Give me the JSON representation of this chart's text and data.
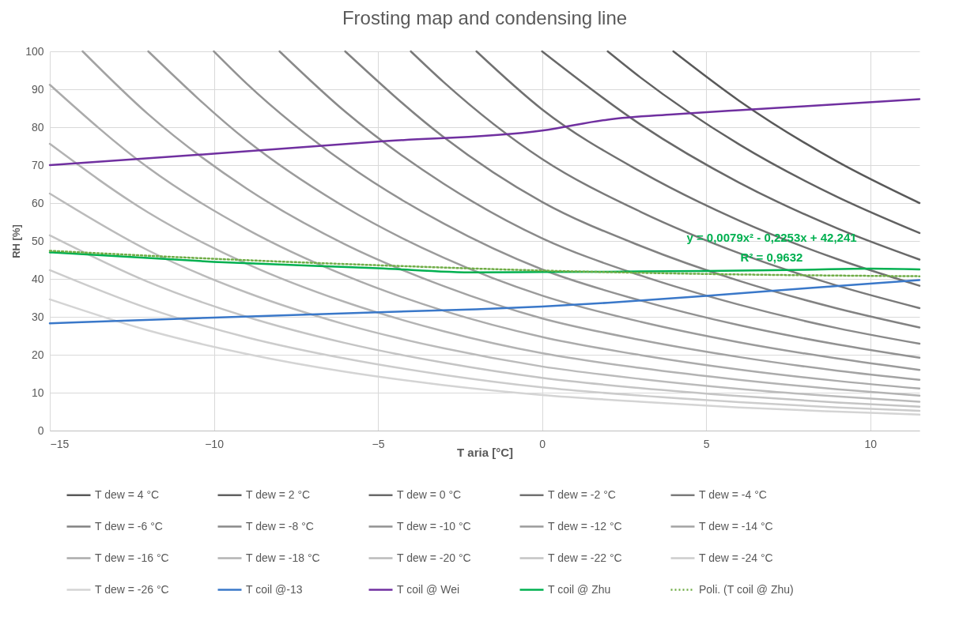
{
  "chart_data": {
    "type": "line",
    "title": "Frosting map and condensing line",
    "xlabel": "T aria [°C]",
    "ylabel": "RH [%]",
    "xlim": [
      -15,
      11.5
    ],
    "xticks": [
      -15,
      -10,
      -5,
      0,
      5,
      10
    ],
    "ylim": [
      0,
      100
    ],
    "yticks": [
      0,
      10,
      20,
      30,
      40,
      50,
      60,
      70,
      80,
      90,
      100
    ],
    "grid": true,
    "legend": "bottom",
    "annotations": [
      "y = 0,0079x² - 0,2253x + 42,241",
      "R² = 0,9632"
    ],
    "series": [
      {
        "name": "T dew = 4 °C",
        "color": "#595959",
        "x": [
          4,
          6,
          9,
          11.5
        ],
        "values": [
          100,
          87.0,
          70.9,
          60.0
        ]
      },
      {
        "name": "T dew = 2 °C",
        "color": "#616161",
        "x": [
          2,
          3,
          6,
          9,
          11.5
        ],
        "values": [
          100,
          93.1,
          75.5,
          61.6,
          52.1
        ]
      },
      {
        "name": "T dew = 0 °C",
        "color": "#696969",
        "x": [
          0,
          3,
          6,
          9,
          11.5
        ],
        "values": [
          100,
          80.7,
          65.4,
          53.3,
          45.1
        ]
      },
      {
        "name": "T dew = -2 °C",
        "color": "#717171",
        "x": [
          -2,
          0,
          3,
          6,
          9,
          11.5
        ],
        "values": [
          100,
          84.7,
          68.3,
          55.4,
          45.2,
          38.2
        ]
      },
      {
        "name": "T dew = -4 °C",
        "color": "#7a7a7a",
        "x": [
          -4,
          -3,
          0,
          3,
          6,
          9,
          11.5
        ],
        "values": [
          100,
          91.9,
          71.6,
          57.7,
          46.8,
          38.2,
          32.3
        ]
      },
      {
        "name": "T dew = -6 °C",
        "color": "#828282",
        "x": [
          -6,
          -3,
          0,
          3,
          6,
          9,
          11.5
        ],
        "values": [
          100,
          77.4,
          60.3,
          48.7,
          39.5,
          32.2,
          27.2
        ]
      },
      {
        "name": "T dew = -8 °C",
        "color": "#8a8a8a",
        "x": [
          -8,
          -6,
          -3,
          0,
          3,
          6,
          9,
          11.5
        ],
        "values": [
          100,
          84.1,
          65.1,
          50.7,
          40.9,
          33.2,
          27.0,
          22.9
        ]
      },
      {
        "name": "T dew = -10 °C",
        "color": "#929292",
        "x": [
          -10,
          -9,
          -6,
          -3,
          0,
          3,
          6,
          9,
          11.5
        ],
        "values": [
          100,
          91.5,
          70.5,
          54.6,
          42.5,
          34.3,
          27.8,
          22.7,
          19.2
        ]
      },
      {
        "name": "T dew = -12 °C",
        "color": "#9b9b9b",
        "x": [
          -12,
          -9,
          -6,
          -3,
          0,
          3,
          6,
          9,
          11.5
        ],
        "values": [
          100,
          76.5,
          58.9,
          45.6,
          35.6,
          28.7,
          23.3,
          19.0,
          16.0
        ]
      },
      {
        "name": "T dew = -14 °C",
        "color": "#a3a3a3",
        "x": [
          -14,
          -12,
          -9,
          -6,
          -3,
          0,
          3,
          6,
          9,
          11.5
        ],
        "values": [
          100,
          83.4,
          63.8,
          49.1,
          38.1,
          29.6,
          23.9,
          19.4,
          15.8,
          13.4
        ]
      },
      {
        "name": "T dew = -16 °C",
        "color": "#ababab",
        "x": [
          -15,
          -12,
          -9,
          -6,
          -3,
          0,
          3,
          6,
          9,
          11.5
        ],
        "values": [
          91.2,
          69.3,
          53.1,
          40.9,
          31.6,
          24.7,
          19.9,
          16.1,
          13.1,
          11.1
        ]
      },
      {
        "name": "T dew = -18 °C",
        "color": "#b3b3b3",
        "x": [
          -15,
          -12,
          -9,
          -6,
          -3,
          0,
          3,
          6,
          9,
          11.5
        ],
        "values": [
          75.6,
          57.5,
          44.0,
          33.9,
          26.2,
          20.4,
          16.5,
          13.4,
          10.9,
          9.2
        ]
      },
      {
        "name": "T dew = -20 °C",
        "color": "#bbbbbb",
        "x": [
          -15,
          -12,
          -9,
          -6,
          -3,
          0,
          3,
          6,
          9,
          11.5
        ],
        "values": [
          62.5,
          47.5,
          36.4,
          28.0,
          21.7,
          16.9,
          13.6,
          11.0,
          9.0,
          7.6
        ]
      },
      {
        "name": "T dew = -22 °C",
        "color": "#c4c4c4",
        "x": [
          -15,
          -12,
          -9,
          -6,
          -3,
          0,
          3,
          6,
          9,
          11.5
        ],
        "values": [
          51.5,
          39.2,
          30.0,
          23.1,
          17.9,
          13.9,
          11.2,
          9.1,
          7.4,
          6.3
        ]
      },
      {
        "name": "T dew = -24 °C",
        "color": "#cccccc",
        "x": [
          -15,
          -12,
          -9,
          -6,
          -3,
          0,
          3,
          6,
          9,
          11.5
        ],
        "values": [
          42.3,
          32.2,
          24.6,
          19.0,
          14.7,
          11.4,
          9.2,
          7.5,
          6.1,
          5.2
        ]
      },
      {
        "name": "T dew = -26 °C",
        "color": "#d4d4d4",
        "x": [
          -15,
          -12,
          -9,
          -6,
          -3,
          0,
          3,
          6,
          9,
          11.5
        ],
        "values": [
          34.6,
          26.4,
          20.2,
          15.5,
          12.0,
          9.4,
          7.6,
          6.1,
          5.0,
          4.2
        ]
      },
      {
        "name": "T coil @-13",
        "color": "#3a78c9",
        "x": [
          -15,
          -10,
          -5,
          -2,
          0,
          2,
          5,
          8,
          11.5
        ],
        "values": [
          28.3,
          29.8,
          31.2,
          32.0,
          32.7,
          33.7,
          35.5,
          37.5,
          39.7
        ]
      },
      {
        "name": "T coil @ Wei",
        "color": "#7030a0",
        "x": [
          -15,
          -10,
          -5,
          0,
          2,
          4,
          6,
          8,
          11.5
        ],
        "values": [
          70.0,
          73.0,
          76.2,
          79.1,
          82.0,
          83.4,
          84.5,
          85.5,
          87.4
        ]
      },
      {
        "name": "T coil @ Zhu",
        "color": "#00b050",
        "x": [
          -15,
          -10,
          -5,
          -2,
          0,
          2,
          5,
          8,
          10,
          11.5
        ],
        "values": [
          47.0,
          44.5,
          42.8,
          41.7,
          41.8,
          41.9,
          42.1,
          42.4,
          42.7,
          42.5
        ]
      },
      {
        "name": "Poli. (T coil @ Zhu)",
        "color": "#70ad47",
        "line_style": "dotted",
        "x": [
          -15,
          -10,
          -5,
          0,
          5,
          10,
          11.5
        ],
        "values": [
          47.4,
          45.3,
          43.6,
          42.2,
          41.3,
          40.8,
          40.7
        ]
      }
    ]
  }
}
